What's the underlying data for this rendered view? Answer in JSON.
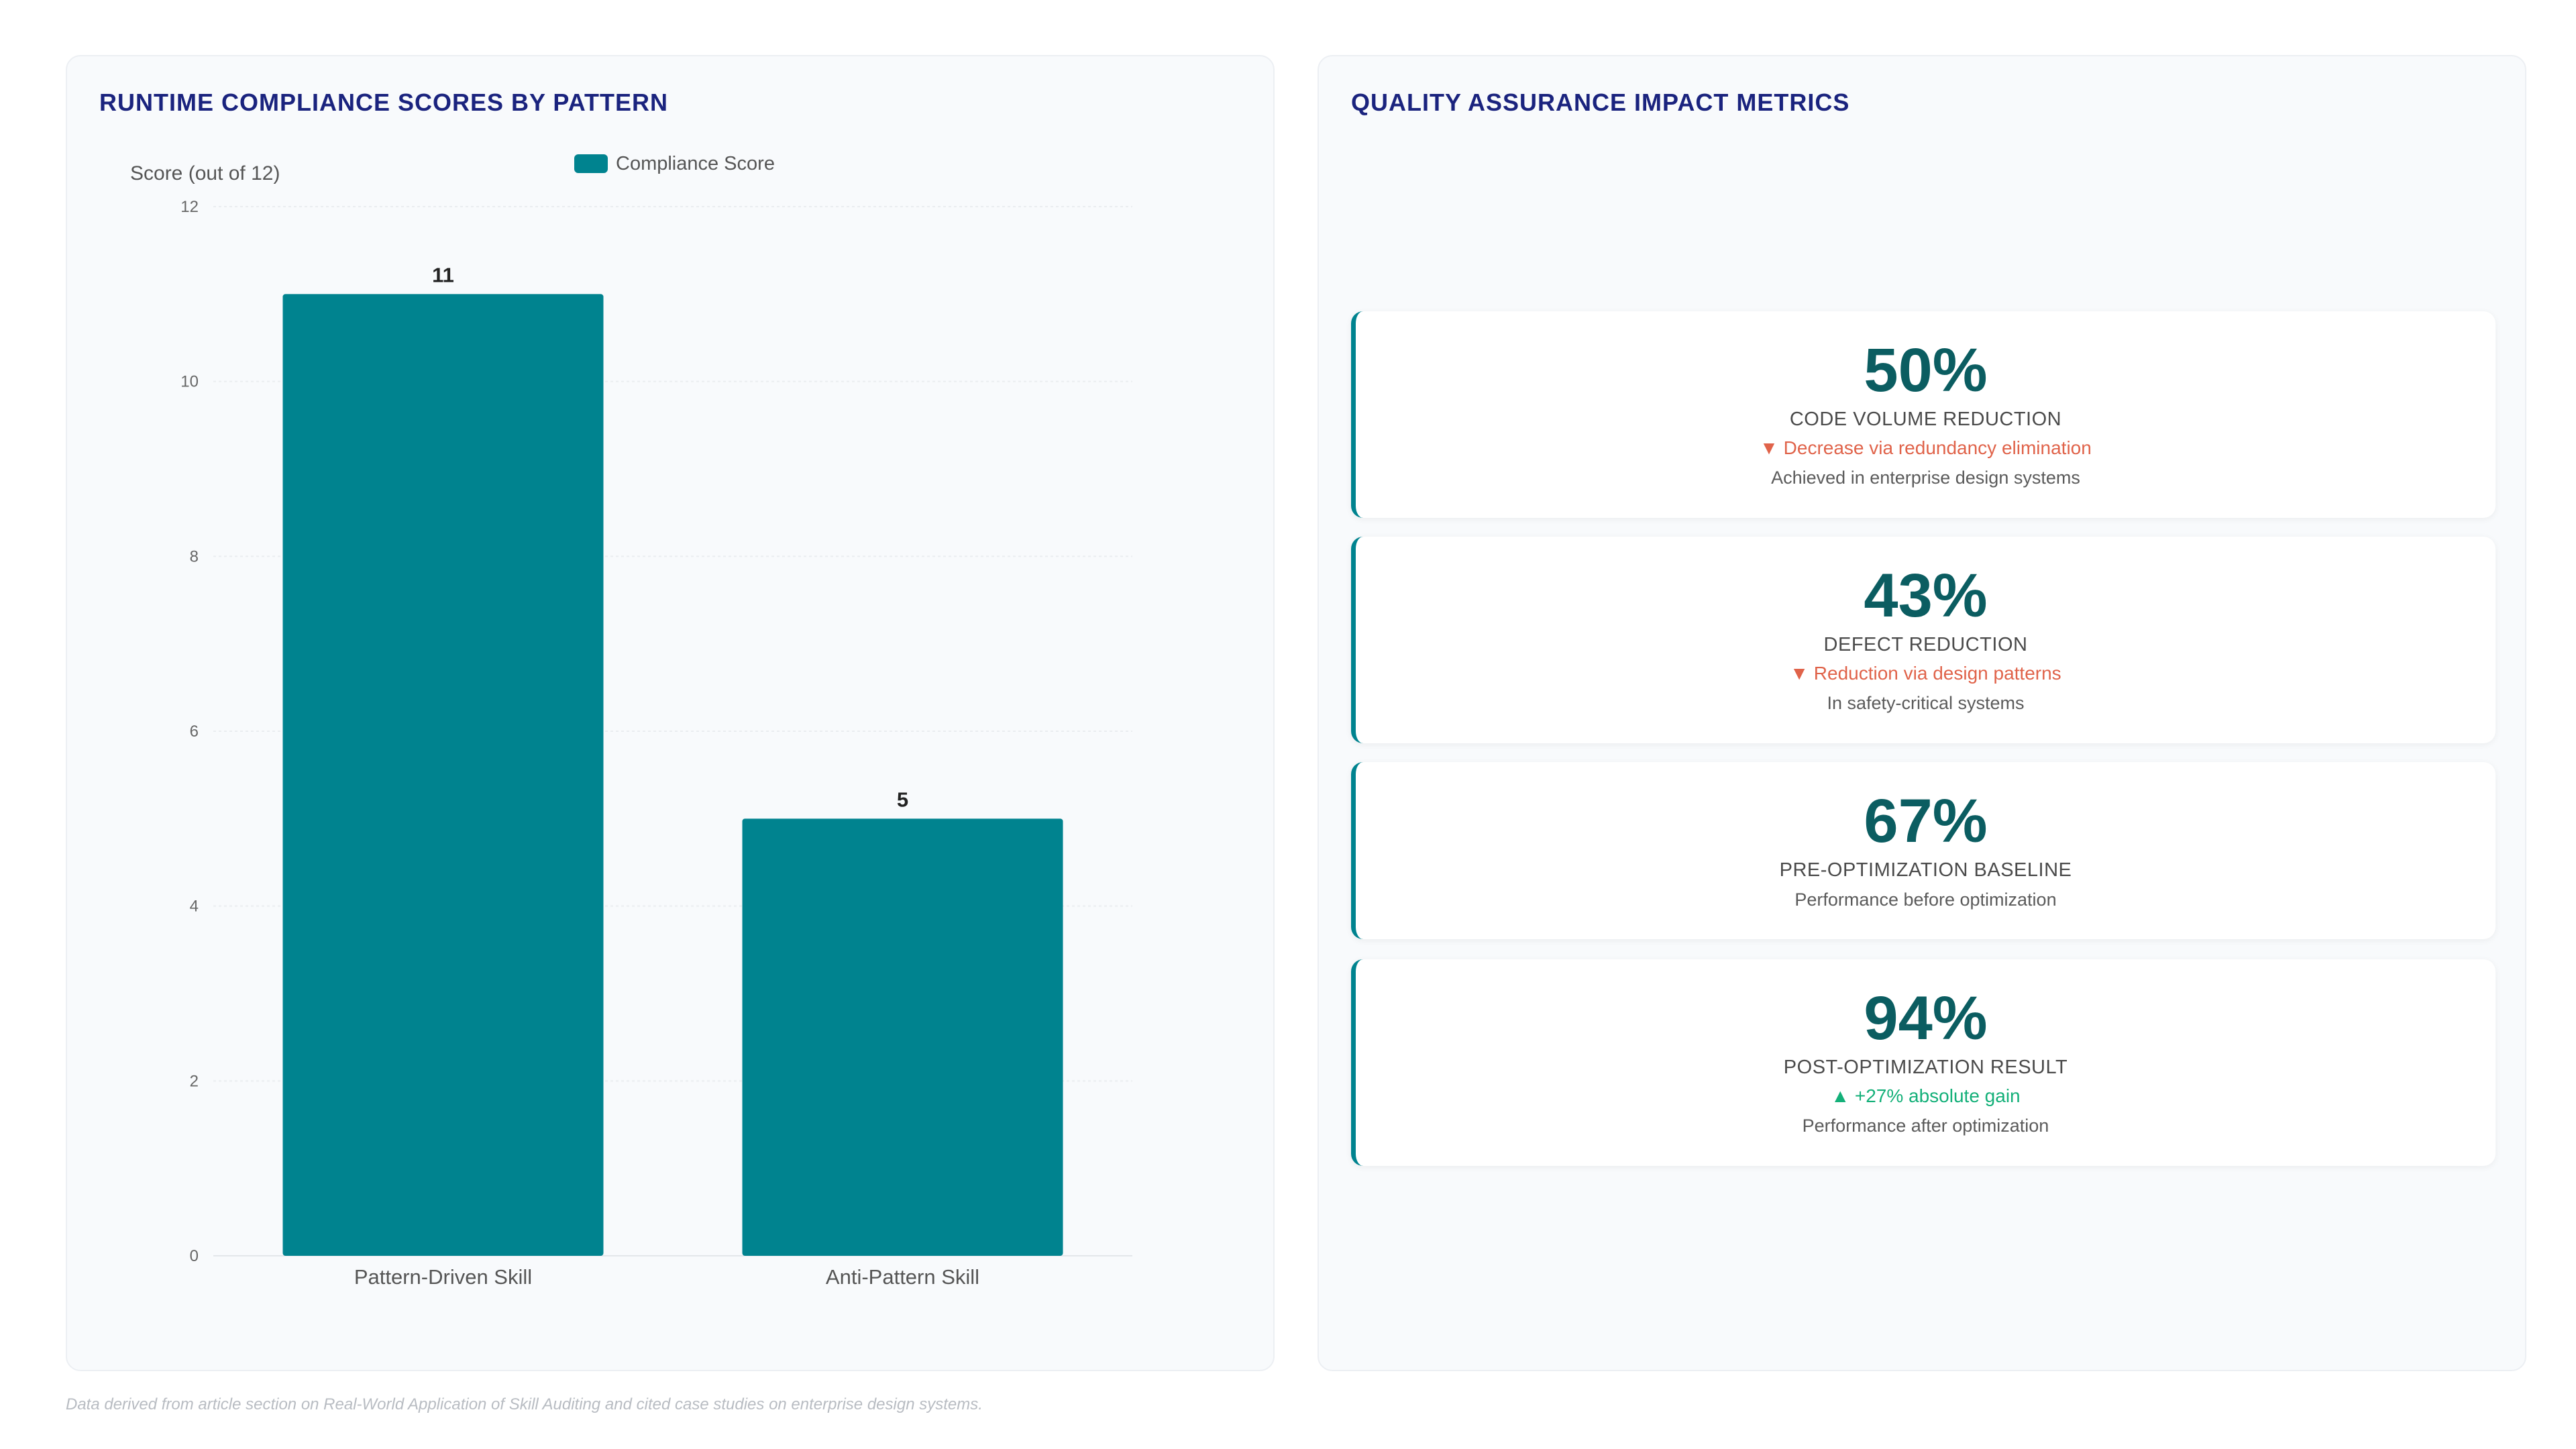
{
  "left_panel": {
    "title": "RUNTIME COMPLIANCE SCORES BY PATTERN"
  },
  "right_panel": {
    "title": "QUALITY ASSURANCE IMPACT METRICS",
    "cards": [
      {
        "value": "50%",
        "label": "CODE VOLUME REDUCTION",
        "trend": "▼ Decrease via redundancy elimination",
        "trend_direction": "down",
        "note": "Achieved in enterprise design systems"
      },
      {
        "value": "43%",
        "label": "DEFECT REDUCTION",
        "trend": "▼ Reduction via design patterns",
        "trend_direction": "down",
        "note": "In safety-critical systems"
      },
      {
        "value": "67%",
        "label": "PRE-OPTIMIZATION BASELINE",
        "trend": "",
        "trend_direction": "",
        "note": "Performance before optimization"
      },
      {
        "value": "94%",
        "label": "POST-OPTIMIZATION RESULT",
        "trend": "▲ +27% absolute gain",
        "trend_direction": "up",
        "note": "Performance after optimization"
      }
    ]
  },
  "colors": {
    "bar": "#00838f",
    "title": "#1a237e",
    "metric_value": "#0b5d61",
    "trend_down": "#e0634a",
    "trend_up": "#14b079"
  },
  "chart_data": {
    "type": "bar",
    "categories": [
      "Pattern-Driven Skill",
      "Anti-Pattern Skill"
    ],
    "series": [
      {
        "name": "Compliance Score",
        "values": [
          11,
          5
        ]
      }
    ],
    "title": "RUNTIME COMPLIANCE SCORES BY PATTERN",
    "xlabel": "",
    "ylabel": "Score (out of 12)",
    "ylim": [
      0,
      12
    ],
    "yticks": [
      0,
      2,
      4,
      6,
      8,
      10,
      12
    ],
    "grid": true,
    "legend_position": "top-center",
    "data_labels": true
  },
  "footnote": "Data derived from article section on Real-World Application of Skill Auditing and cited case studies on enterprise design systems."
}
